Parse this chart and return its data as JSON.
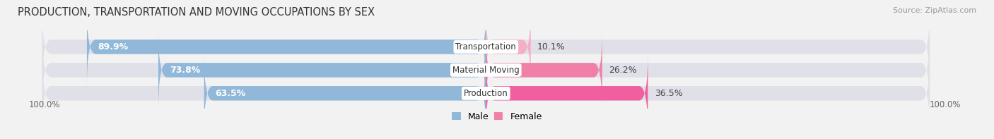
{
  "title": "PRODUCTION, TRANSPORTATION AND MOVING OCCUPATIONS BY SEX",
  "source": "Source: ZipAtlas.com",
  "categories": [
    "Transportation",
    "Material Moving",
    "Production"
  ],
  "male_values": [
    89.9,
    73.8,
    63.5
  ],
  "female_values": [
    10.1,
    26.2,
    36.5
  ],
  "male_color": "#91b8d9",
  "female_colors": [
    "#f5aec8",
    "#f080a8",
    "#f060a0"
  ],
  "bar_bg_color": "#e0e0e8",
  "male_label": "Male",
  "female_label": "Female",
  "male_legend_color": "#91b8d9",
  "female_legend_color": "#f080a8",
  "axis_label_left": "100.0%",
  "axis_label_right": "100.0%",
  "title_fontsize": 10.5,
  "source_fontsize": 8,
  "bar_height": 0.62,
  "background_color": "#f2f2f2",
  "label_text_color": "#444444",
  "male_pct_color": "#ffffff",
  "female_pct_color": "#444444",
  "center_label_color": "#333333"
}
